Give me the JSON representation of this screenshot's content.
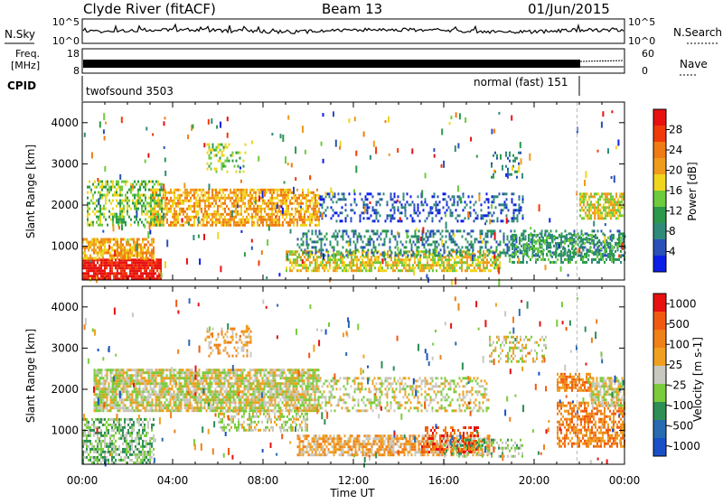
{
  "header": {
    "title": "Clyde River (fitACF)",
    "beam": "Beam 13",
    "date": "01/Jun/2015"
  },
  "nsky_panel": {
    "label": "N.Sky",
    "left_ticks": [
      "10^5",
      "10^0"
    ],
    "right_ticks": [
      "10^5",
      "10^0"
    ],
    "right_label": "N.Search"
  },
  "freq_panel": {
    "label_line1": "Freq.",
    "label_line2": "[MHz]",
    "left_ticks": [
      "18",
      "8"
    ],
    "right_ticks": [
      "60",
      "0"
    ],
    "right_label": "Nave"
  },
  "cpid_panel": {
    "label": "CPID",
    "mode1": "twofsound 3503",
    "mode2": "normal (fast) 151",
    "mode_switch_hour": 21.9
  },
  "colors": {
    "power": [
      "#0a1ee8",
      "#2a4fb8",
      "#2f8a7a",
      "#2a9a4a",
      "#6ecb3c",
      "#f0d51e",
      "#f09a1e",
      "#f07a14",
      "#f03a0a",
      "#e81010"
    ],
    "velocity": [
      "#1a4fc8",
      "#2a6ab0",
      "#2d8f55",
      "#7acc3c",
      "#c8c8c0",
      "#f0a020",
      "#f08018",
      "#f05a10",
      "#e81010"
    ]
  },
  "chart_data": [
    {
      "type": "heatmap",
      "ylabel": "Slant Range [km]",
      "yticks": [
        1000,
        2000,
        3000,
        4000
      ],
      "ylim": [
        180,
        4500
      ],
      "xlim": [
        0,
        24
      ],
      "colorbar": {
        "label": "Power [dB]",
        "ticks": [
          "4",
          "8",
          "12",
          "16",
          "20",
          "24",
          "28"
        ]
      },
      "regions": [
        {
          "h0": 0.0,
          "h1": 3.5,
          "r0": 200,
          "r1": 700,
          "level": 9,
          "density": 0.9
        },
        {
          "h0": 0.0,
          "h1": 3.2,
          "r0": 700,
          "r1": 1200,
          "level": 6,
          "density": 0.7
        },
        {
          "h0": 3.0,
          "h1": 10.5,
          "r0": 1500,
          "r1": 2400,
          "level": 6,
          "density": 0.65
        },
        {
          "h0": 0.2,
          "h1": 3.5,
          "r0": 1500,
          "r1": 2600,
          "level": 4,
          "density": 0.45
        },
        {
          "h0": 5.5,
          "h1": 7.2,
          "r0": 2800,
          "r1": 3500,
          "level": 4,
          "density": 0.35
        },
        {
          "h0": 9.0,
          "h1": 18.5,
          "r0": 400,
          "r1": 900,
          "level": 5,
          "density": 0.65
        },
        {
          "h0": 9.5,
          "h1": 24.0,
          "r0": 800,
          "r1": 1400,
          "level": 2,
          "density": 0.35
        },
        {
          "h0": 10.5,
          "h1": 19.5,
          "r0": 1600,
          "r1": 2300,
          "level": 1,
          "density": 0.3
        },
        {
          "h0": 18.0,
          "h1": 19.5,
          "r0": 2700,
          "r1": 3300,
          "level": 2,
          "density": 0.25
        },
        {
          "h0": 22.0,
          "h1": 24.0,
          "r0": 1700,
          "r1": 2300,
          "level": 5,
          "density": 0.7
        },
        {
          "h0": 19.0,
          "h1": 24.0,
          "r0": 600,
          "r1": 1300,
          "level": 3,
          "density": 0.45
        }
      ]
    },
    {
      "type": "heatmap",
      "ylabel": "Slant Range [km]",
      "xlabel": "Time UT",
      "xticks": [
        "00:00",
        "04:00",
        "08:00",
        "12:00",
        "16:00",
        "20:00",
        "00:00"
      ],
      "yticks": [
        1000,
        2000,
        3000,
        4000
      ],
      "ylim": [
        180,
        4500
      ],
      "xlim": [
        0,
        24
      ],
      "colorbar": {
        "label": "Velocity [m s-1]",
        "ticks": [
          "1000",
          "500",
          "100",
          "25",
          "-25",
          "-100",
          "-500",
          "-1000"
        ]
      },
      "regions": [
        {
          "h0": 0.0,
          "h1": 3.2,
          "r0": 200,
          "r1": 1300,
          "level": 3,
          "density": 0.6
        },
        {
          "h0": 0.5,
          "h1": 10.5,
          "r0": 1500,
          "r1": 2500,
          "level": 4,
          "density": 0.8
        },
        {
          "h0": 10.5,
          "h1": 18.0,
          "r0": 1500,
          "r1": 2300,
          "level": 4,
          "density": 0.35
        },
        {
          "h0": 9.5,
          "h1": 18.0,
          "r0": 400,
          "r1": 900,
          "level": 5,
          "density": 0.7
        },
        {
          "h0": 15.0,
          "h1": 17.5,
          "r0": 500,
          "r1": 1100,
          "level": 7,
          "density": 0.45
        },
        {
          "h0": 16.0,
          "h1": 19.5,
          "r0": 400,
          "r1": 800,
          "level": 3,
          "density": 0.35
        },
        {
          "h0": 6.0,
          "h1": 10.0,
          "r0": 1000,
          "r1": 1500,
          "level": 4,
          "density": 0.45
        },
        {
          "h0": 21.0,
          "h1": 24.0,
          "r0": 600,
          "r1": 1700,
          "level": 6,
          "density": 0.6
        },
        {
          "h0": 22.5,
          "h1": 24.0,
          "r0": 1600,
          "r1": 2300,
          "level": 4,
          "density": 0.7
        },
        {
          "h0": 21.0,
          "h1": 22.5,
          "r0": 2000,
          "r1": 2400,
          "level": 6,
          "density": 0.7
        },
        {
          "h0": 18.0,
          "h1": 20.5,
          "r0": 2700,
          "r1": 3300,
          "level": 4,
          "density": 0.3
        },
        {
          "h0": 5.5,
          "h1": 7.5,
          "r0": 2800,
          "r1": 3500,
          "level": 5,
          "density": 0.3
        }
      ]
    }
  ]
}
